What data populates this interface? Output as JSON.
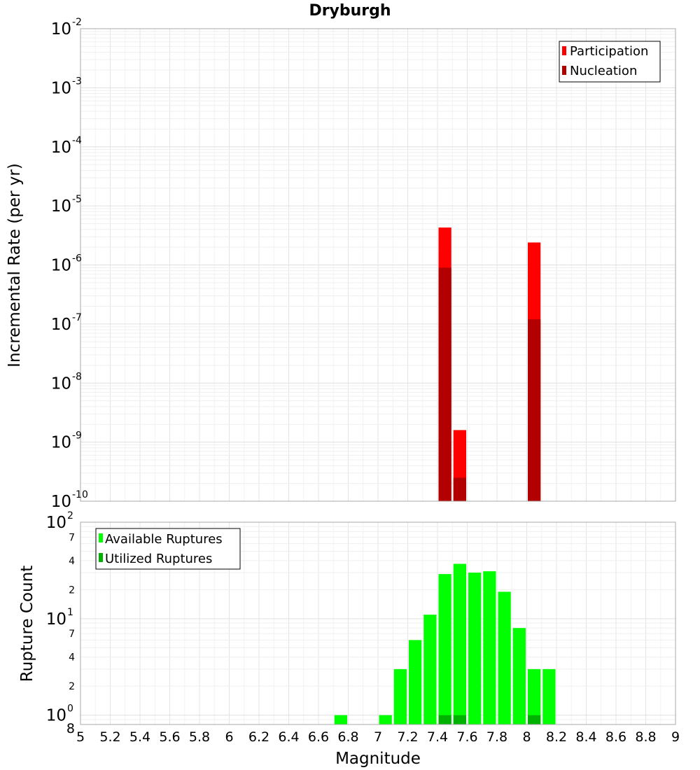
{
  "chart_data": [
    {
      "type": "bar",
      "title": "Dryburgh",
      "xlabel": "",
      "ylabel": "Incremental Rate (per yr)",
      "yscale": "log",
      "xlim": [
        5,
        9
      ],
      "ylim": [
        1e-10,
        0.01
      ],
      "grid": true,
      "legend_position": "top-right",
      "bin_width": 0.1,
      "y_tick_labels": [
        {
          "base": "10",
          "exp": "-2"
        },
        {
          "base": "10",
          "exp": "-3"
        },
        {
          "base": "10",
          "exp": "-4"
        },
        {
          "base": "10",
          "exp": "-5"
        },
        {
          "base": "10",
          "exp": "-6"
        },
        {
          "base": "10",
          "exp": "-7"
        },
        {
          "base": "10",
          "exp": "-8"
        },
        {
          "base": "10",
          "exp": "-9"
        },
        {
          "base": "10",
          "exp": "-10"
        }
      ],
      "series": [
        {
          "name": "Participation",
          "color": "#ff0000",
          "x": [
            7.45,
            7.55,
            8.05
          ],
          "values": [
            4.3e-06,
            1.6e-09,
            2.4e-06
          ]
        },
        {
          "name": "Nucleation",
          "color": "#b20000",
          "x": [
            7.45,
            7.55,
            8.05
          ],
          "values": [
            9e-07,
            2.5e-10,
            1.2e-07
          ]
        }
      ]
    },
    {
      "type": "bar",
      "title": "",
      "xlabel": "Magnitude",
      "ylabel": "Rupture Count",
      "yscale": "log",
      "xlim": [
        5,
        9
      ],
      "ylim": [
        0.8,
        100
      ],
      "grid": true,
      "legend_position": "top-left",
      "bin_width": 0.1,
      "x_tick_labels": [
        "5",
        "5.2",
        "5.4",
        "5.6",
        "5.8",
        "6",
        "6.2",
        "6.4",
        "6.6",
        "6.8",
        "7",
        "7.2",
        "7.4",
        "7.6",
        "7.8",
        "8",
        "8.2",
        "8.4",
        "8.6",
        "8.8",
        "9"
      ],
      "y_tick_labels": [
        {
          "base": "10",
          "exp": "2"
        },
        {
          "base": "10",
          "exp": "1"
        },
        {
          "base": "10",
          "exp": "0"
        }
      ],
      "y_minor_tick_labels": [
        "7",
        "4",
        "2",
        "7",
        "4",
        "2",
        "8"
      ],
      "series": [
        {
          "name": "Available Ruptures",
          "color": "#00ff00",
          "x": [
            6.75,
            7.05,
            7.15,
            7.25,
            7.35,
            7.45,
            7.55,
            7.65,
            7.75,
            7.85,
            7.95,
            8.05,
            8.15
          ],
          "values": [
            1,
            1,
            3,
            6,
            11,
            29,
            37,
            30,
            31,
            19,
            8,
            3,
            3
          ]
        },
        {
          "name": "Utilized Ruptures",
          "color": "#00b200",
          "x": [
            7.45,
            7.55,
            8.05
          ],
          "values": [
            1,
            1,
            1
          ]
        }
      ]
    }
  ]
}
